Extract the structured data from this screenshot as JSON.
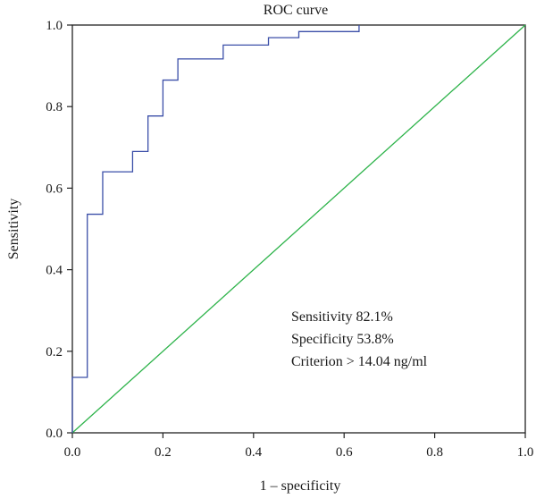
{
  "chart_data": {
    "type": "line",
    "title": "ROC curve",
    "xlabel": "1 – specificity",
    "ylabel": "Sensitivity",
    "xlim": [
      0.0,
      1.0
    ],
    "ylim": [
      0.0,
      1.0
    ],
    "grid": false,
    "x_ticks": [
      "0.0",
      "0.2",
      "0.4",
      "0.6",
      "0.8",
      "1.0"
    ],
    "y_ticks": [
      "0.0",
      "0.2",
      "0.4",
      "0.6",
      "0.8",
      "1.0"
    ],
    "series": [
      {
        "color": "#3b4fa8",
        "style": "step",
        "x": [
          0.0,
          0.0,
          0.033,
          0.033,
          0.067,
          0.067,
          0.133,
          0.133,
          0.167,
          0.167,
          0.2,
          0.2,
          0.233,
          0.233,
          0.333,
          0.333,
          0.433,
          0.433,
          0.5,
          0.5,
          0.633,
          0.633
        ],
        "y": [
          0.0,
          0.136,
          0.136,
          0.536,
          0.536,
          0.64,
          0.64,
          0.69,
          0.69,
          0.777,
          0.777,
          0.865,
          0.865,
          0.917,
          0.917,
          0.951,
          0.951,
          0.969,
          0.969,
          0.984,
          0.984,
          1.0
        ]
      },
      {
        "color": "#2db34a",
        "style": "line",
        "x": [
          0.0,
          1.0
        ],
        "y": [
          0.0,
          1.0
        ]
      }
    ],
    "annotations": [
      "Sensitivity 82.1%",
      "Specificity 53.8%",
      "Criterion > 14.04 ng/ml"
    ]
  }
}
